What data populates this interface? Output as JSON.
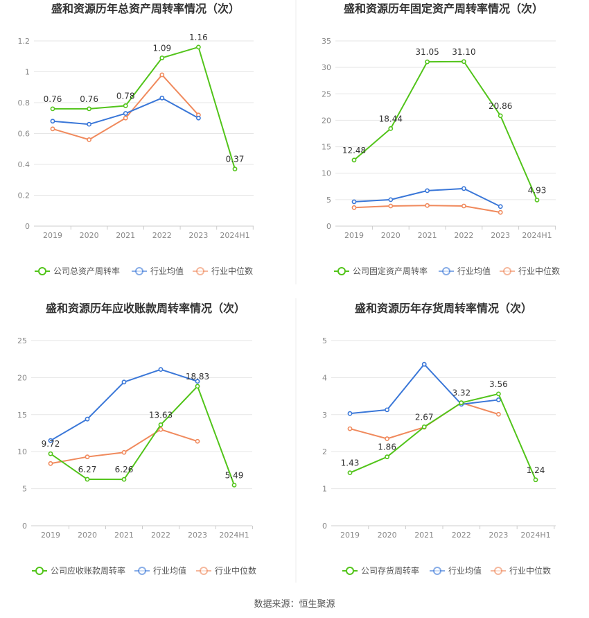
{
  "footer": "数据来源：恒生聚源",
  "legend_labels": {
    "industry_avg": "行业均值",
    "industry_median": "行业中位数"
  },
  "colors": {
    "company": "#52c41a",
    "industry_avg": "#3a77d8",
    "industry_median": "#f08a5d",
    "grid": "#e6e6e6",
    "axis_text": "#888888",
    "label_text": "#333333",
    "title": "#333333"
  },
  "chart_data": [
    {
      "type": "line",
      "title": "盛和资源历年总资产周转率情况（次）",
      "categories": [
        "2019",
        "2020",
        "2021",
        "2022",
        "2023",
        "2024H1"
      ],
      "ylim": [
        0,
        1.2
      ],
      "yticks": [
        "0",
        "0.2",
        "0.4",
        "0.6",
        "0.8",
        "1",
        "1.2"
      ],
      "grid": true,
      "legend": "bottom",
      "series": [
        {
          "name": "公司总资产周转率",
          "role": "company",
          "values": [
            0.76,
            0.76,
            0.78,
            1.09,
            1.16,
            0.37
          ],
          "labels": [
            "0.76",
            "0.76",
            "0.78",
            "1.09",
            "1.16",
            "0.37"
          ]
        },
        {
          "name": "行业均值",
          "role": "industry_avg",
          "values": [
            0.68,
            0.66,
            0.73,
            0.83,
            0.7,
            null
          ]
        },
        {
          "name": "行业中位数",
          "role": "industry_median",
          "values": [
            0.63,
            0.56,
            0.7,
            0.98,
            0.72,
            null
          ]
        }
      ]
    },
    {
      "type": "line",
      "title": "盛和资源历年固定资产周转率情况（次）",
      "categories": [
        "2019",
        "2020",
        "2021",
        "2022",
        "2023",
        "2024H1"
      ],
      "ylim": [
        0,
        35
      ],
      "yticks": [
        "0",
        "5",
        "10",
        "15",
        "20",
        "25",
        "30",
        "35"
      ],
      "grid": true,
      "legend": "bottom",
      "series": [
        {
          "name": "公司固定资产周转率",
          "role": "company",
          "values": [
            12.48,
            18.44,
            31.05,
            31.1,
            20.86,
            4.93
          ],
          "labels": [
            "12.48",
            "18.44",
            "31.05",
            "31.10",
            "20.86",
            "4.93"
          ]
        },
        {
          "name": "行业均值",
          "role": "industry_avg",
          "values": [
            4.6,
            5.0,
            6.7,
            7.1,
            3.7,
            null
          ]
        },
        {
          "name": "行业中位数",
          "role": "industry_median",
          "values": [
            3.5,
            3.8,
            3.9,
            3.8,
            2.6,
            null
          ]
        }
      ]
    },
    {
      "type": "line",
      "title": "盛和资源历年应收账款周转率情况（次）",
      "categories": [
        "2019",
        "2020",
        "2021",
        "2022",
        "2023",
        "2024H1"
      ],
      "ylim": [
        0,
        25
      ],
      "yticks": [
        "0",
        "5",
        "10",
        "15",
        "20",
        "25"
      ],
      "grid": true,
      "legend": "bottom",
      "series": [
        {
          "name": "公司应收账款周转率",
          "role": "company",
          "values": [
            9.72,
            6.27,
            6.26,
            13.63,
            18.83,
            5.49
          ],
          "labels": [
            "9.72",
            "6.27",
            "6.26",
            "13.63",
            "18.83",
            "5.49"
          ]
        },
        {
          "name": "行业均值",
          "role": "industry_avg",
          "values": [
            11.5,
            14.4,
            19.4,
            21.1,
            19.5,
            null
          ]
        },
        {
          "name": "行业中位数",
          "role": "industry_median",
          "values": [
            8.4,
            9.3,
            9.9,
            13.0,
            11.4,
            null
          ]
        }
      ]
    },
    {
      "type": "line",
      "title": "盛和资源历年存货周转率情况（次）",
      "categories": [
        "2019",
        "2020",
        "2021",
        "2022",
        "2023",
        "2024H1"
      ],
      "ylim": [
        0,
        5
      ],
      "yticks": [
        "0",
        "1",
        "2",
        "3",
        "4",
        "5"
      ],
      "grid": true,
      "legend": "bottom",
      "series": [
        {
          "name": "公司存货周转率",
          "role": "company",
          "values": [
            1.43,
            1.86,
            2.67,
            3.32,
            3.56,
            1.24
          ],
          "labels": [
            "1.43",
            "1.86",
            "2.67",
            "3.32",
            "3.56",
            "1.24"
          ]
        },
        {
          "name": "行业均值",
          "role": "industry_avg",
          "values": [
            3.03,
            3.13,
            4.36,
            3.28,
            3.4,
            null
          ]
        },
        {
          "name": "行业中位数",
          "role": "industry_median",
          "values": [
            2.62,
            2.35,
            2.66,
            3.32,
            3.01,
            null
          ]
        }
      ]
    }
  ]
}
